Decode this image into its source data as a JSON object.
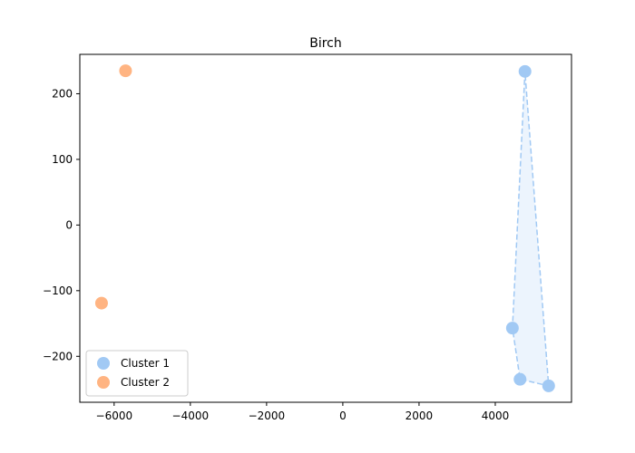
{
  "chart_data": {
    "type": "scatter",
    "title": "Birch",
    "xlabel": "",
    "ylabel": "",
    "xlim": [
      -6900,
      6000
    ],
    "ylim": [
      -270,
      260
    ],
    "xticks": [
      -6000,
      -4000,
      -2000,
      0,
      2000,
      4000
    ],
    "xtick_labels": [
      "−6000",
      "−4000",
      "−2000",
      "0",
      "2000",
      "4000"
    ],
    "yticks": [
      -200,
      -100,
      0,
      100,
      200
    ],
    "ytick_labels": [
      "−200",
      "−100",
      "0",
      "100",
      "200"
    ],
    "grid": false,
    "legend_position": "lower-left",
    "series": [
      {
        "name": "Cluster 1",
        "color": "#a1c9f4",
        "points": [
          {
            "x": 4780,
            "y": 234
          },
          {
            "x": 4450,
            "y": -157
          },
          {
            "x": 4650,
            "y": -235
          },
          {
            "x": 5400,
            "y": -245
          }
        ],
        "hull": true,
        "hull_order": [
          0,
          1,
          2,
          3
        ]
      },
      {
        "name": "Cluster 2",
        "color": "#ffb482",
        "points": [
          {
            "x": -5700,
            "y": 235
          },
          {
            "x": -6330,
            "y": -119
          }
        ],
        "hull": false
      }
    ]
  }
}
